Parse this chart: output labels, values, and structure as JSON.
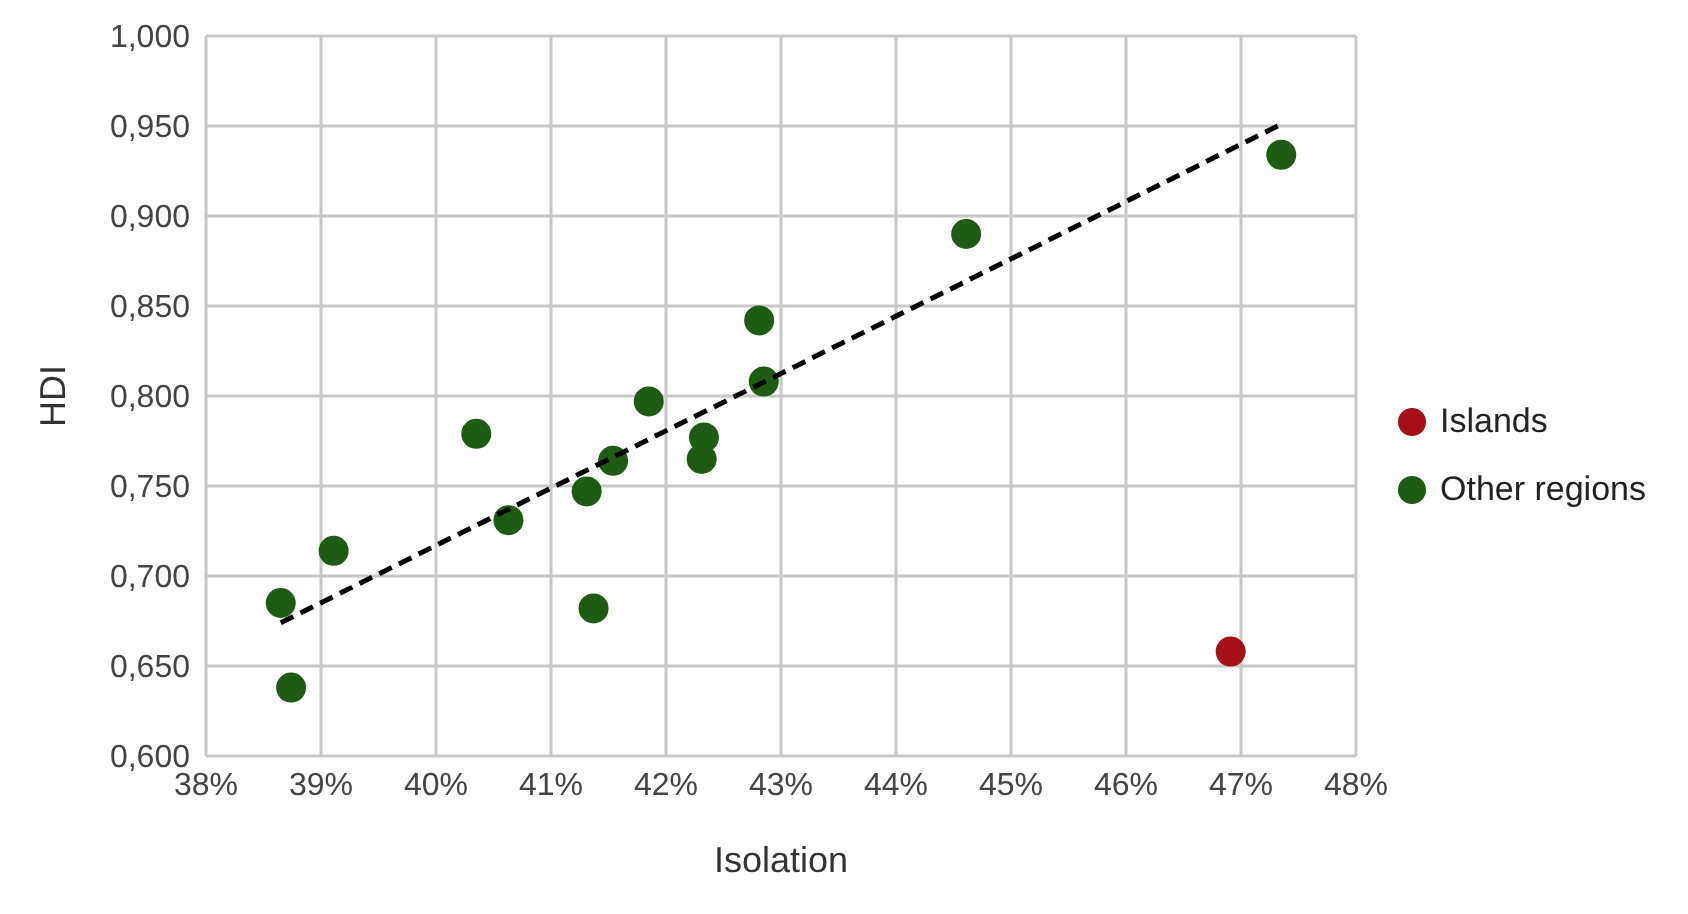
{
  "chart_data": {
    "type": "scatter",
    "xlabel": "Isolation",
    "ylabel": "HDI",
    "xlim": [
      38,
      48
    ],
    "xticks": [
      {
        "value": 38,
        "label": "38%"
      },
      {
        "value": 39,
        "label": "39%"
      },
      {
        "value": 40,
        "label": "40%"
      },
      {
        "value": 41,
        "label": "41%"
      },
      {
        "value": 42,
        "label": "42%"
      },
      {
        "value": 43,
        "label": "43%"
      },
      {
        "value": 44,
        "label": "44%"
      },
      {
        "value": 45,
        "label": "45%"
      },
      {
        "value": 46,
        "label": "46%"
      },
      {
        "value": 47,
        "label": "47%"
      },
      {
        "value": 48,
        "label": "48%"
      }
    ],
    "ylim": [
      0.6,
      1.0
    ],
    "yticks": [
      {
        "value": 0.6,
        "label": "0,600"
      },
      {
        "value": 0.65,
        "label": "0,650"
      },
      {
        "value": 0.7,
        "label": "0,700"
      },
      {
        "value": 0.75,
        "label": "0,750"
      },
      {
        "value": 0.8,
        "label": "0,800"
      },
      {
        "value": 0.85,
        "label": "0,850"
      },
      {
        "value": 0.9,
        "label": "0,900"
      },
      {
        "value": 0.95,
        "label": "0,950"
      },
      {
        "value": 1.0,
        "label": "1,000"
      }
    ],
    "grid": true,
    "legend": "right",
    "marker": "circle",
    "series": [
      {
        "name": "Islands",
        "color": "#a50f15",
        "x": [
          46.91
        ],
        "values": [
          0.658
        ]
      },
      {
        "name": "Other regions",
        "color": "#1e5c14",
        "x": [
          38.65,
          38.74,
          39.11,
          40.35,
          40.63,
          41.31,
          41.37,
          41.54,
          41.85,
          42.33,
          42.31,
          42.81,
          42.85,
          44.61,
          47.35
        ],
        "values": [
          0.685,
          0.638,
          0.714,
          0.779,
          0.731,
          0.747,
          0.682,
          0.764,
          0.797,
          0.777,
          0.765,
          0.842,
          0.808,
          0.89,
          0.934
        ]
      },
      {
        "type": "line",
        "color": "#000000",
        "line_style": "dashed",
        "marker": "none",
        "x": [
          38.65,
          47.35
        ],
        "values": [
          0.674,
          0.951
        ]
      }
    ]
  }
}
